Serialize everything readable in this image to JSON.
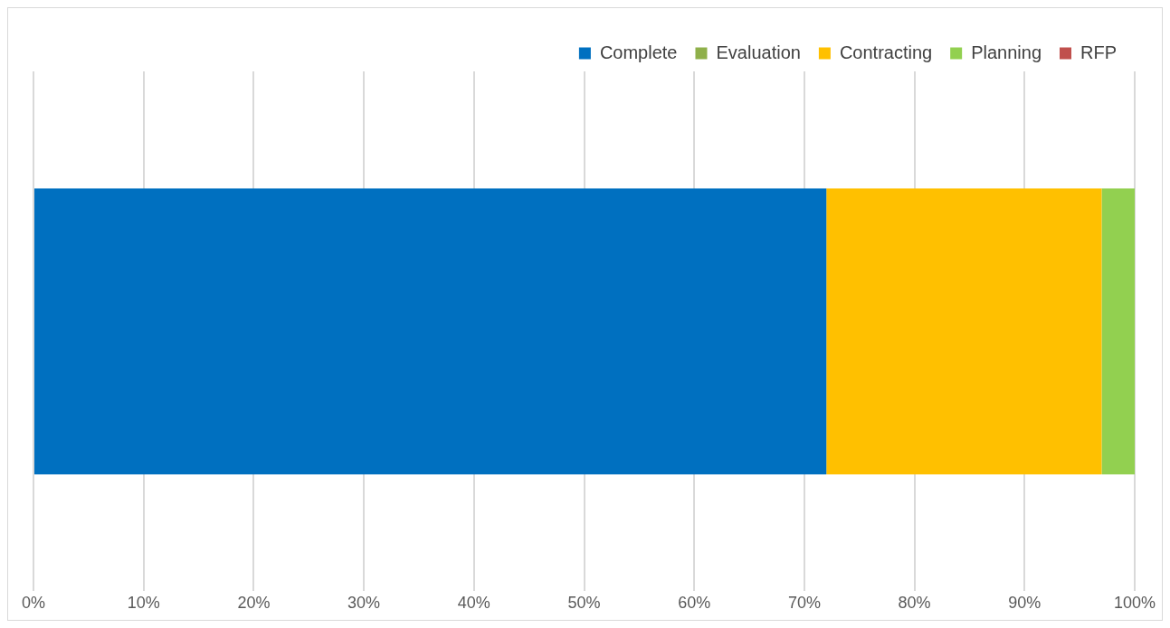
{
  "chart_data": {
    "type": "bar",
    "orientation": "horizontal",
    "stacked": true,
    "categories": [
      null
    ],
    "series": [
      {
        "name": "Complete",
        "color": "#0070c0",
        "values": [
          72
        ]
      },
      {
        "name": "Evaluation",
        "color": "#8fb04a",
        "values": [
          0
        ]
      },
      {
        "name": "Contracting",
        "color": "#ffc000",
        "values": [
          25
        ]
      },
      {
        "name": "Planning",
        "color": "#92d050",
        "values": [
          3
        ]
      },
      {
        "name": "RFP",
        "color": "#c0504d",
        "values": [
          0
        ]
      }
    ],
    "xlim": [
      0,
      100
    ],
    "xticks": [
      {
        "value": 0,
        "label": "0%"
      },
      {
        "value": 10,
        "label": "10%"
      },
      {
        "value": 20,
        "label": "20%"
      },
      {
        "value": 30,
        "label": "30%"
      },
      {
        "value": 40,
        "label": "40%"
      },
      {
        "value": 50,
        "label": "50%"
      },
      {
        "value": 60,
        "label": "60%"
      },
      {
        "value": 70,
        "label": "70%"
      },
      {
        "value": 80,
        "label": "80%"
      },
      {
        "value": 90,
        "label": "90%"
      },
      {
        "value": 100,
        "label": "100%"
      }
    ],
    "grid": "x",
    "legend": "top right",
    "tick_labels": "x"
  }
}
